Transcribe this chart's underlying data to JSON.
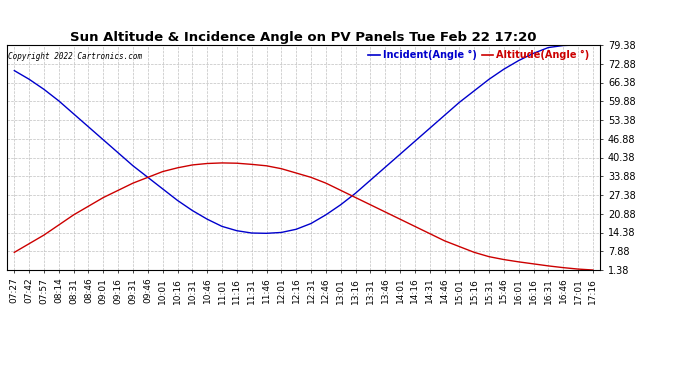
{
  "title": "Sun Altitude & Incidence Angle on PV Panels Tue Feb 22 17:20",
  "copyright": "Copyright 2022 Cartronics.com",
  "legend_incident": "Incident(Angle °)",
  "legend_altitude": "Altitude(Angle °)",
  "incident_color": "#0000cc",
  "altitude_color": "#cc0000",
  "background_color": "#ffffff",
  "grid_color": "#c0c0c0",
  "yticks": [
    1.38,
    7.88,
    14.38,
    20.88,
    27.38,
    33.88,
    40.38,
    46.88,
    53.38,
    59.88,
    66.38,
    72.88,
    79.38
  ],
  "ylim": [
    1.38,
    79.38
  ],
  "x_tick_labels": [
    "07:27",
    "07:42",
    "07:57",
    "08:14",
    "08:31",
    "08:46",
    "09:01",
    "09:16",
    "09:31",
    "09:46",
    "10:01",
    "10:16",
    "10:31",
    "10:46",
    "11:01",
    "11:16",
    "11:31",
    "11:46",
    "12:01",
    "12:16",
    "12:31",
    "12:46",
    "13:01",
    "13:16",
    "13:31",
    "13:46",
    "14:01",
    "14:16",
    "14:31",
    "14:46",
    "15:01",
    "15:16",
    "15:31",
    "15:46",
    "16:01",
    "16:16",
    "16:31",
    "16:46",
    "17:01",
    "17:16"
  ],
  "incident_data": [
    70.5,
    67.5,
    64.0,
    60.0,
    55.5,
    51.0,
    46.5,
    42.0,
    37.5,
    33.5,
    29.5,
    25.5,
    22.0,
    19.0,
    16.5,
    15.0,
    14.2,
    14.1,
    14.4,
    15.5,
    17.5,
    20.5,
    24.0,
    28.0,
    32.5,
    37.0,
    41.5,
    46.0,
    50.5,
    55.0,
    59.5,
    63.5,
    67.5,
    71.0,
    74.0,
    76.5,
    78.5,
    79.2,
    79.4,
    79.38
  ],
  "altitude_data": [
    7.5,
    10.5,
    13.5,
    17.0,
    20.5,
    23.5,
    26.5,
    29.0,
    31.5,
    33.5,
    35.5,
    36.8,
    37.8,
    38.3,
    38.5,
    38.4,
    38.0,
    37.5,
    36.5,
    35.0,
    33.5,
    31.5,
    29.0,
    26.5,
    24.0,
    21.5,
    19.0,
    16.5,
    14.0,
    11.5,
    9.5,
    7.5,
    6.0,
    5.0,
    4.2,
    3.5,
    2.8,
    2.2,
    1.7,
    1.38
  ],
  "title_fontsize": 9.5,
  "copyright_fontsize": 5.5,
  "legend_fontsize": 7.0,
  "tick_fontsize": 6.5,
  "ytick_fontsize": 7.0
}
